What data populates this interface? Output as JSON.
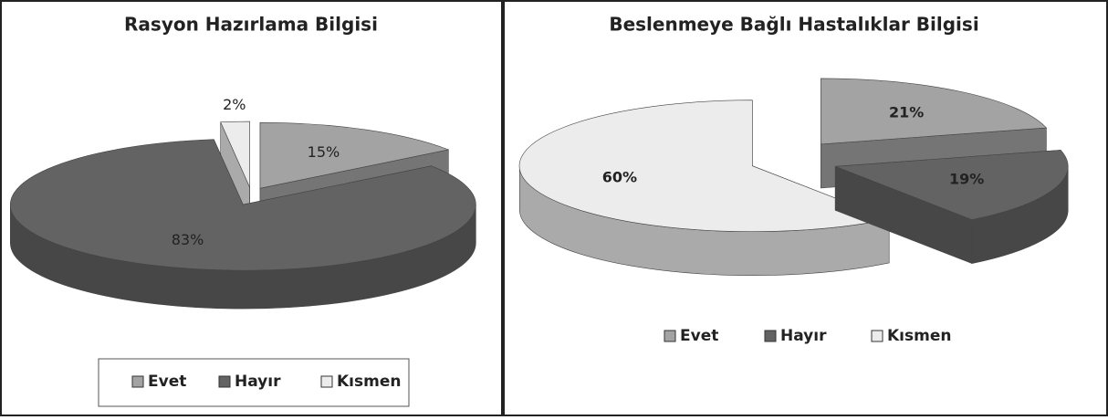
{
  "chart_data": [
    {
      "type": "pie3d",
      "title": "Rasyon Hazırlama Bilgisi",
      "categories": [
        "Evet",
        "Hayır",
        "Kısmen"
      ],
      "values": [
        15,
        83,
        2
      ],
      "value_labels": [
        "15%",
        "83%",
        "2%"
      ],
      "colors": [
        "#a3a3a3",
        "#636363",
        "#ececec"
      ],
      "legend": "bottom"
    },
    {
      "type": "pie3d",
      "title": "Beslenmeye Bağlı Hastalıklar Bilgisi",
      "categories": [
        "Evet",
        "Hayır",
        "Kısmen"
      ],
      "values": [
        21,
        19,
        60
      ],
      "value_labels": [
        "21%",
        "19%",
        "60%"
      ],
      "colors": [
        "#a3a3a3",
        "#636363",
        "#ececec"
      ],
      "legend": "bottom"
    }
  ]
}
